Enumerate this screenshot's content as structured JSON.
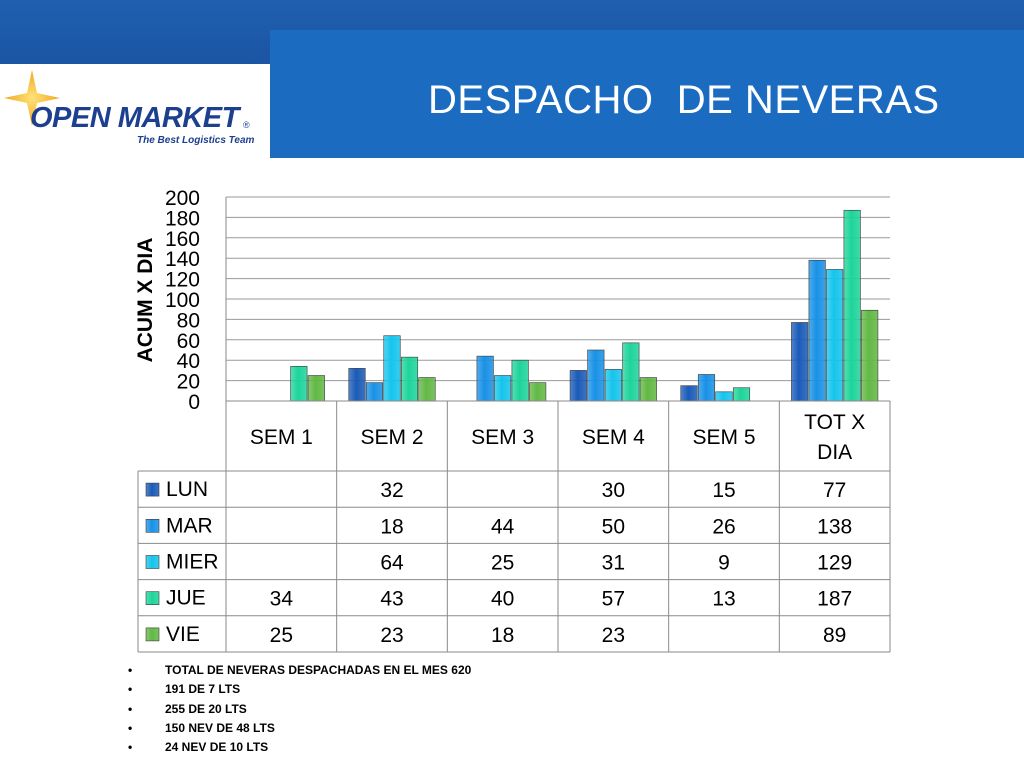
{
  "header": {
    "title": "DESPACHO  DE NEVERAS",
    "logo_text": "OPEN MARKET",
    "logo_tagline": "The Best Logistics Team",
    "logo_registered": "®"
  },
  "chart_data": {
    "type": "bar",
    "title": "",
    "ylabel": "ACUM X DIA",
    "xlabel": "",
    "ylim": [
      0,
      200
    ],
    "yticks": [
      0,
      20,
      40,
      60,
      80,
      100,
      120,
      140,
      160,
      180,
      200
    ],
    "grid": true,
    "legend": "bottom-left data table",
    "categories": [
      "SEM 1",
      "SEM 2",
      "SEM 3",
      "SEM 4",
      "SEM 5",
      "TOT X DIA"
    ],
    "category_lines": [
      [
        "SEM 1"
      ],
      [
        "SEM 2"
      ],
      [
        "SEM 3"
      ],
      [
        "SEM 4"
      ],
      [
        "SEM 5"
      ],
      [
        "TOT X",
        "DIA"
      ]
    ],
    "series": [
      {
        "name": "LUN",
        "color": "#1a5bb8",
        "values": [
          null,
          32,
          null,
          30,
          15,
          77
        ]
      },
      {
        "name": "MAR",
        "color": "#1991e6",
        "values": [
          null,
          18,
          44,
          50,
          26,
          138
        ]
      },
      {
        "name": "MIER",
        "color": "#16c4ec",
        "values": [
          null,
          64,
          25,
          31,
          9,
          129
        ]
      },
      {
        "name": "JUE",
        "color": "#1ed49a",
        "values": [
          34,
          43,
          40,
          57,
          13,
          187
        ]
      },
      {
        "name": "VIE",
        "color": "#62b845",
        "values": [
          25,
          23,
          18,
          23,
          null,
          89
        ]
      }
    ]
  },
  "notes": [
    "TOTAL DE NEVERAS DESPACHADAS EN EL MES 620",
    "191 DE 7 LTS",
    "255 DE 20 LTS",
    "150 NEV DE 48 LTS",
    "24 NEV DE 10 LTS"
  ]
}
